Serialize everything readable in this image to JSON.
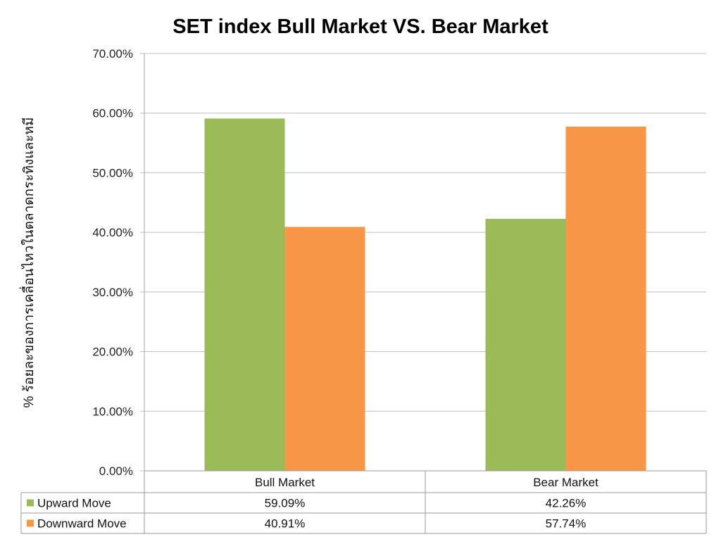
{
  "chart_data": {
    "type": "bar",
    "title": "SET index Bull Market VS. Bear Market",
    "xlabel": "",
    "ylabel": "% ร้อยละของการเคลื่อนไหวในตลาดกระทิงและหมี",
    "categories": [
      "Bull Market",
      "Bear Market"
    ],
    "series": [
      {
        "name": "Upward Move",
        "values": [
          59.09,
          42.26
        ],
        "labels": [
          "59.09%",
          "42.26%"
        ],
        "color": "#9BBB59"
      },
      {
        "name": "Downward Move",
        "values": [
          40.91,
          57.74
        ],
        "labels": [
          "40.91%",
          "57.74%"
        ],
        "color": "#F79646"
      }
    ],
    "ylim": [
      0,
      70
    ],
    "yticks": [
      0,
      10,
      20,
      30,
      40,
      50,
      60,
      70
    ],
    "ytick_labels": [
      "0.00%",
      "10.00%",
      "20.00%",
      "30.00%",
      "40.00%",
      "50.00%",
      "60.00%",
      "70.00%"
    ],
    "grid": true,
    "legend": "data-table-below"
  }
}
